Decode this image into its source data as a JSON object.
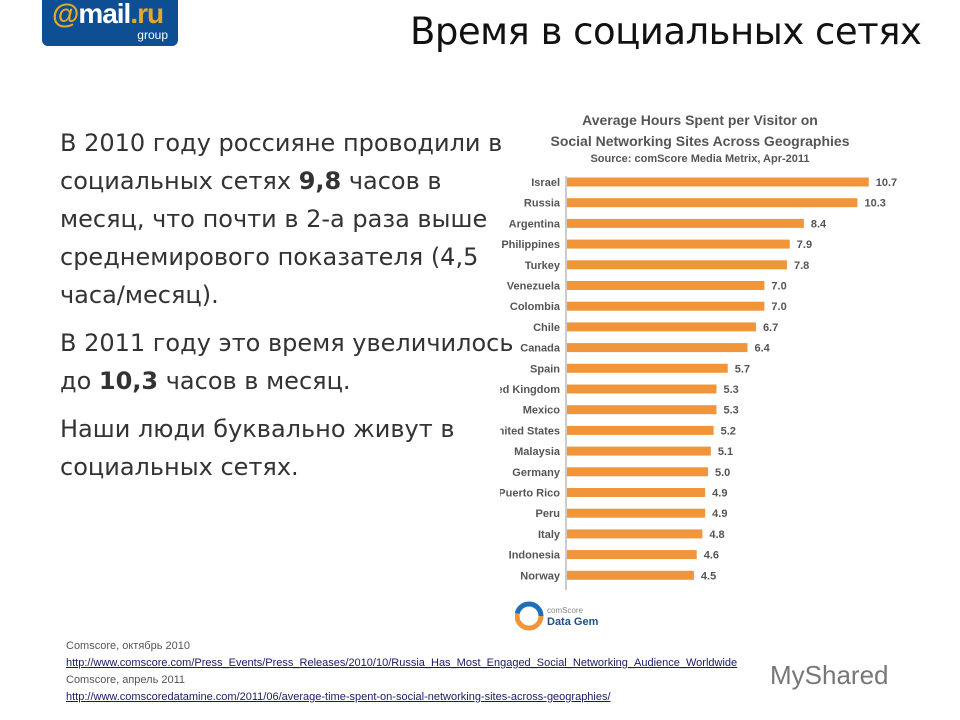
{
  "logo": {
    "at": "@",
    "mail": "mail",
    "dot": ".",
    "ru": "ru",
    "group": "group"
  },
  "title": "Время в социальных сетях",
  "body": {
    "p1_a": "В 2010 году россияне проводили в социальных сетях ",
    "p1_b": "9,8",
    "p1_c": " часов в месяц, что почти в 2-а раза выше среднемирового показателя (4,5 часа/месяц).",
    "p2_a": "В 2011 году это время увеличилось до ",
    "p2_b": "10,3",
    "p2_c": " часов в месяц.",
    "p3": "Наши люди буквально живут в социальных сетях."
  },
  "chart_data": {
    "type": "bar",
    "orientation": "horizontal",
    "title": "Average Hours Spent per Visitor on Social Networking Sites Across Geographies",
    "title_line1": "Average Hours Spent per Visitor on",
    "title_line2": "Social Networking Sites Across Geographies",
    "subtitle": "Source: comScore Media Metrix, Apr-2011",
    "categories": [
      "Israel",
      "Russia",
      "Argentina",
      "Philippines",
      "Turkey",
      "Venezuela",
      "Colombia",
      "Chile",
      "Canada",
      "Spain",
      "United Kingdom",
      "Mexico",
      "United States",
      "Malaysia",
      "Germany",
      "Puerto Rico",
      "Peru",
      "Italy",
      "Indonesia",
      "Norway"
    ],
    "values": [
      10.7,
      10.3,
      8.4,
      7.9,
      7.8,
      7.0,
      7.0,
      6.7,
      6.4,
      5.7,
      5.3,
      5.3,
      5.2,
      5.1,
      5.0,
      4.9,
      4.9,
      4.8,
      4.6,
      4.5
    ],
    "value_labels": [
      "10.7",
      "10.3",
      "8.4",
      "7.9",
      "7.8",
      "7.0",
      "7.0",
      "6.7",
      "6.4",
      "5.7",
      "5.3",
      "5.3",
      "5.2",
      "5.1",
      "5.0",
      "4.9",
      "4.9",
      "4.8",
      "4.6",
      "4.5"
    ],
    "bar_color": "#f0953a",
    "grid": false
  },
  "datagem": {
    "brand": "comScore",
    "name": "Data Gem"
  },
  "refs": {
    "r1": "Comscore, октябрь 2010",
    "l1": "http://www.comscore.com/Press_Events/Press_Releases/2010/10/Russia_Has_Most_Engaged_Social_Networking_Audience_Worldwide",
    "r2": "Comscore, апрель 2011",
    "l2": "http://www.comscoredatamine.com/2011/06/average-time-spent-on-social-networking-sites-across-geographies/"
  },
  "watermark": "MyShared"
}
